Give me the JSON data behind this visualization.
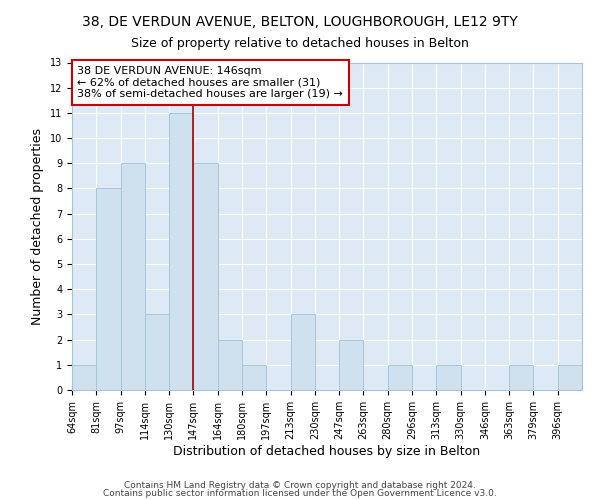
{
  "title": "38, DE VERDUN AVENUE, BELTON, LOUGHBOROUGH, LE12 9TY",
  "subtitle": "Size of property relative to detached houses in Belton",
  "xlabel": "Distribution of detached houses by size in Belton",
  "ylabel": "Number of detached properties",
  "bin_labels": [
    "64sqm",
    "81sqm",
    "97sqm",
    "114sqm",
    "130sqm",
    "147sqm",
    "164sqm",
    "180sqm",
    "197sqm",
    "213sqm",
    "230sqm",
    "247sqm",
    "263sqm",
    "280sqm",
    "296sqm",
    "313sqm",
    "330sqm",
    "346sqm",
    "363sqm",
    "379sqm",
    "396sqm"
  ],
  "counts": [
    1,
    8,
    9,
    3,
    11,
    9,
    2,
    1,
    0,
    3,
    0,
    2,
    0,
    1,
    0,
    1,
    0,
    0,
    1,
    0,
    1
  ],
  "bar_color": "#cfe0ef",
  "bar_edgecolor": "#a8c4d8",
  "property_line_index": 5,
  "vline_color": "#aa0000",
  "annotation_text": "38 DE VERDUN AVENUE: 146sqm\n← 62% of detached houses are smaller (31)\n38% of semi-detached houses are larger (19) →",
  "annotation_box_edgecolor": "#cc0000",
  "ylim": [
    0,
    13
  ],
  "yticks": [
    0,
    1,
    2,
    3,
    4,
    5,
    6,
    7,
    8,
    9,
    10,
    11,
    12,
    13
  ],
  "bg_color": "#ffffff",
  "plot_bg_color": "#ddeaf5",
  "grid_color": "#ffffff",
  "title_fontsize": 10,
  "subtitle_fontsize": 9,
  "axis_label_fontsize": 9,
  "tick_fontsize": 7,
  "annotation_fontsize": 8,
  "footer_fontsize": 6.5,
  "footer1": "Contains HM Land Registry data © Crown copyright and database right 2024.",
  "footer2": "Contains public sector information licensed under the Open Government Licence v3.0."
}
